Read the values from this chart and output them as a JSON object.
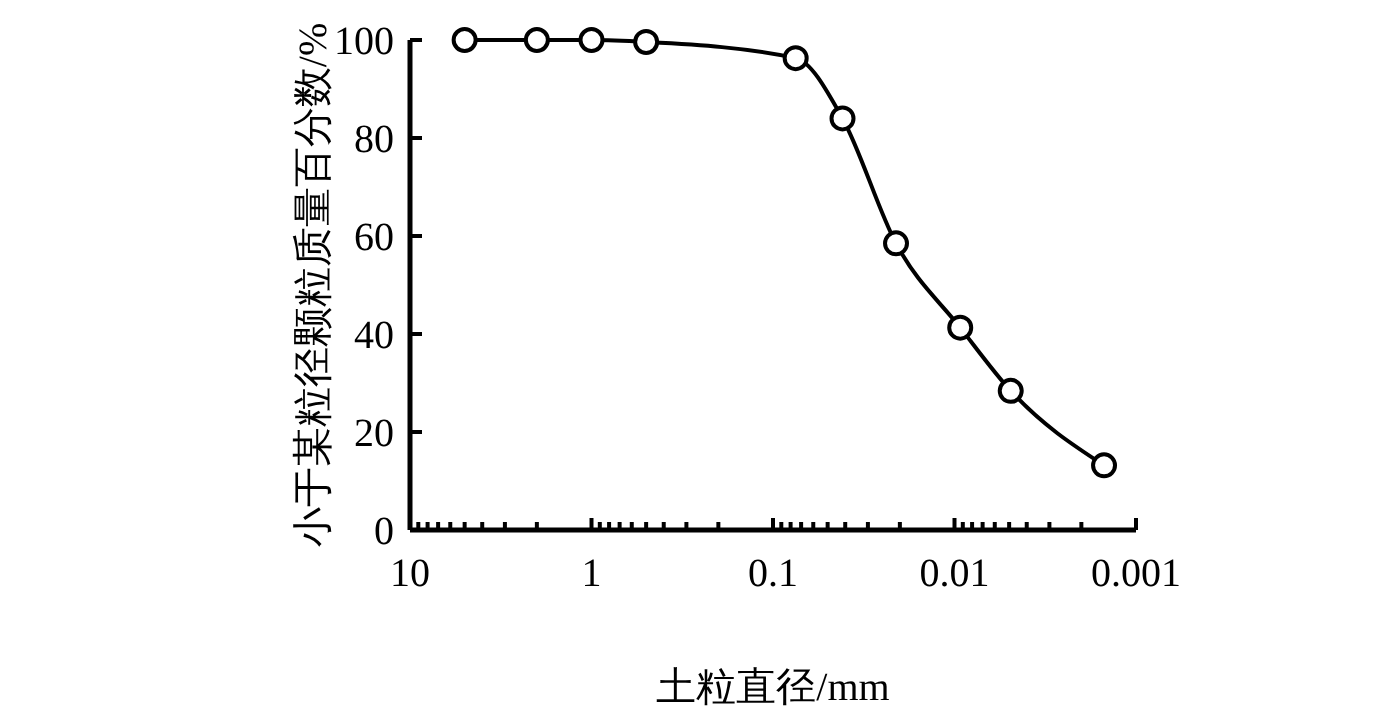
{
  "chart_data": {
    "type": "line",
    "xlabel": "土粒直径/mm",
    "ylabel": "小于某粒径颗粒质量百分数/%",
    "x": [
      5,
      2,
      1,
      0.5,
      0.075,
      0.0414,
      0.021,
      0.0093,
      0.0049,
      0.0015
    ],
    "series": [
      {
        "color": "#000000",
        "values": [
          100,
          100,
          100,
          99.6,
          96.3,
          84,
          58.5,
          41.3,
          28.4,
          13.2
        ]
      }
    ],
    "log": "x",
    "xlim": [
      10,
      0.001
    ],
    "xticks": [
      10,
      {
        "value": 9,
        "label": null
      },
      {
        "value": 8,
        "label": null
      },
      {
        "value": 7,
        "label": null
      },
      {
        "value": 6,
        "label": null
      },
      {
        "value": 5,
        "label": null
      },
      {
        "value": 4,
        "label": null
      },
      {
        "value": 3,
        "label": null
      },
      {
        "value": 2,
        "label": null
      },
      1,
      {
        "value": 0.9,
        "label": null
      },
      {
        "value": 0.8,
        "label": null
      },
      {
        "value": 0.7,
        "label": null
      },
      {
        "value": 0.6,
        "label": null
      },
      {
        "value": 0.5,
        "label": null
      },
      {
        "value": 0.4,
        "label": null
      },
      {
        "value": 0.3,
        "label": null
      },
      {
        "value": 0.2,
        "label": null
      },
      0.1,
      {
        "value": 0.09,
        "label": null
      },
      {
        "value": 0.08,
        "label": null
      },
      {
        "value": 0.07,
        "label": null
      },
      {
        "value": 0.06,
        "label": null
      },
      {
        "value": 0.05,
        "label": null
      },
      {
        "value": 0.04,
        "label": null
      },
      {
        "value": 0.03,
        "label": null
      },
      {
        "value": 0.02,
        "label": null
      },
      0.01,
      {
        "value": 0.009,
        "label": null
      },
      {
        "value": 0.008,
        "label": null
      },
      {
        "value": 0.007,
        "label": null
      },
      {
        "value": 0.006,
        "label": null
      },
      {
        "value": 0.005,
        "label": null
      },
      {
        "value": 0.004,
        "label": null
      },
      {
        "value": 0.003,
        "label": null
      },
      {
        "value": 0.002,
        "label": null
      },
      0.001
    ],
    "ylim": [
      0,
      100
    ],
    "yticks": [
      0,
      20,
      40,
      60,
      80,
      100
    ],
    "grid": false,
    "marker": "circle",
    "line_style": "solid"
  }
}
